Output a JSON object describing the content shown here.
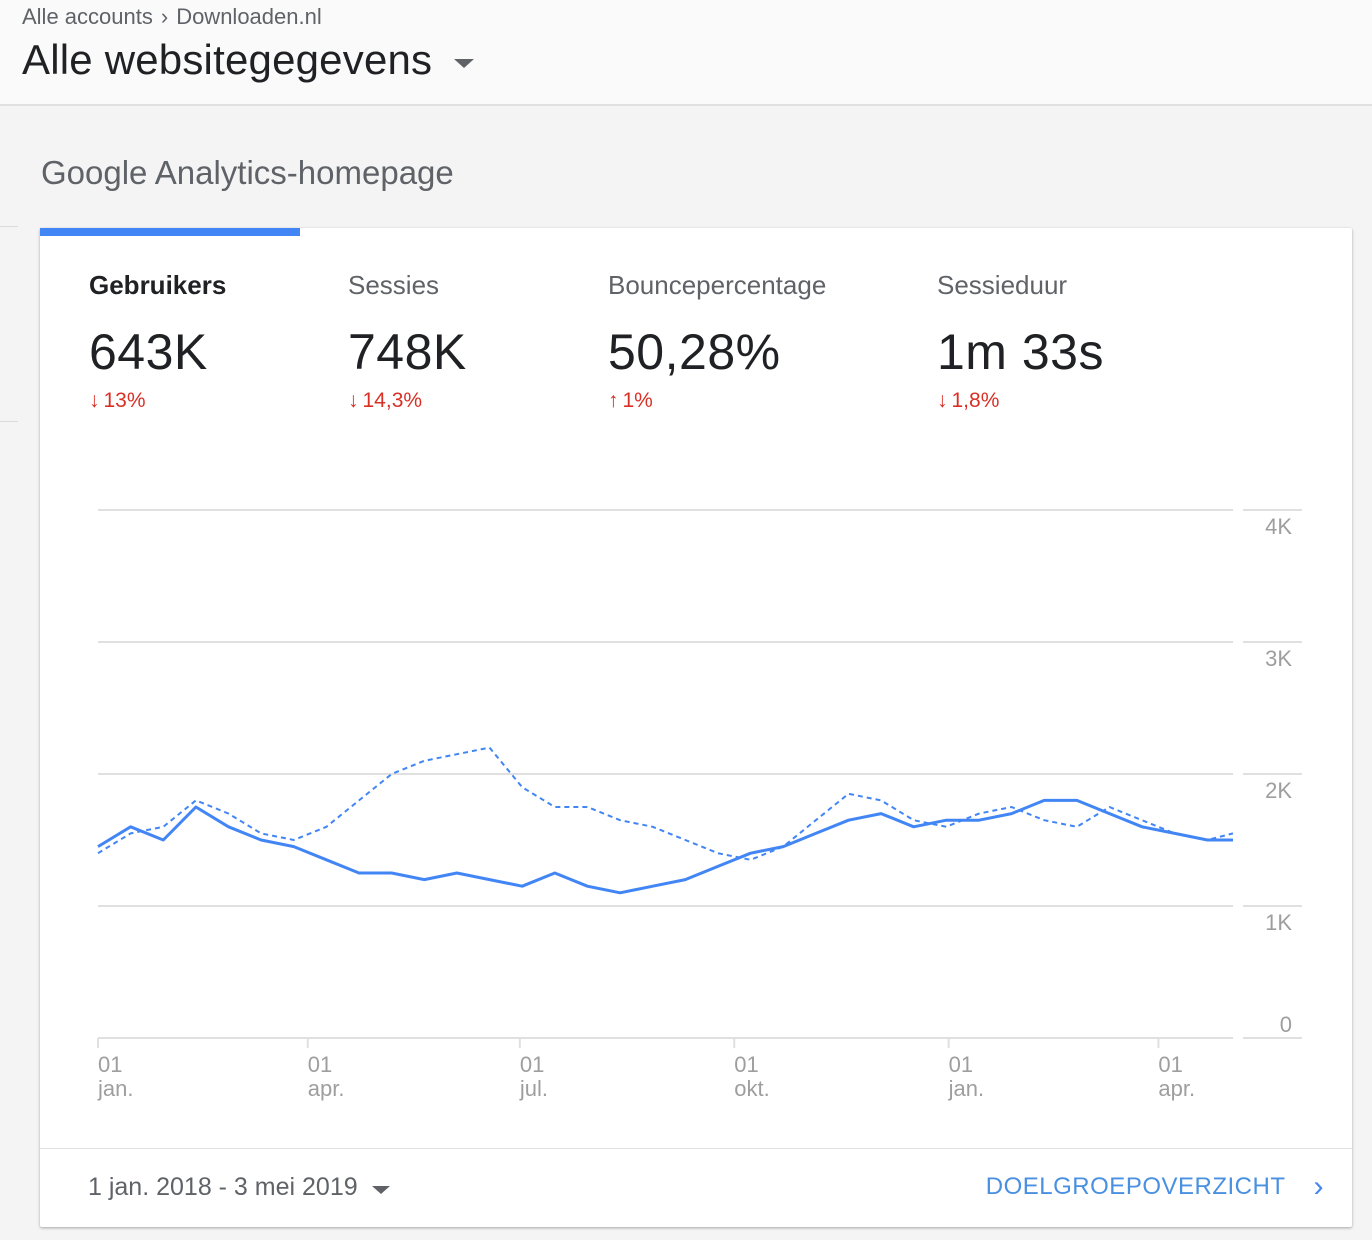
{
  "breadcrumb": {
    "account": "Alle accounts",
    "property": "Downloaden.nl",
    "separator_icon": "chevron-right-icon"
  },
  "view": {
    "title": "Alle websitegegevens",
    "caret_icon": "arrow-drop-down-icon"
  },
  "section_title": "Google Analytics-homepage",
  "colors": {
    "accent": "#4285f4",
    "negative": "#d93025",
    "link": "#4a90e2"
  },
  "metrics": [
    {
      "label": "Gebruikers",
      "value": "643K",
      "change": "13%",
      "direction": "down",
      "arrow_icon": "arrow-down-icon",
      "active": true
    },
    {
      "label": "Sessies",
      "value": "748K",
      "change": "14,3%",
      "direction": "down",
      "arrow_icon": "arrow-down-icon",
      "active": false
    },
    {
      "label": "Bouncepercentage",
      "value": "50,28%",
      "change": "1%",
      "direction": "up",
      "arrow_icon": "arrow-up-icon",
      "active": false
    },
    {
      "label": "Sessieduur",
      "value": "1m 33s",
      "change": "1,8%",
      "direction": "down",
      "arrow_icon": "arrow-down-icon",
      "active": false
    }
  ],
  "chart_data": {
    "type": "line",
    "title": "",
    "xlabel": "",
    "ylabel": "",
    "ylim": [
      0,
      4000
    ],
    "y_ticks": [
      "0",
      "1K",
      "2K",
      "3K",
      "4K"
    ],
    "x_ticks": [
      {
        "day": "01",
        "month": "jan.",
        "date": "2018-01-01"
      },
      {
        "day": "01",
        "month": "apr.",
        "date": "2018-04-01"
      },
      {
        "day": "01",
        "month": "jul.",
        "date": "2018-07-01"
      },
      {
        "day": "01",
        "month": "okt.",
        "date": "2018-10-01"
      },
      {
        "day": "01",
        "month": "jan.",
        "date": "2019-01-01"
      },
      {
        "day": "01",
        "month": "apr.",
        "date": "2019-04-01"
      }
    ],
    "x_range": [
      "2018-01-01",
      "2019-05-03"
    ],
    "grid": true,
    "series": [
      {
        "style": "solid",
        "x": [
          "2018-01-01",
          "2018-01-15",
          "2018-01-29",
          "2018-02-12",
          "2018-02-26",
          "2018-03-12",
          "2018-03-26",
          "2018-04-09",
          "2018-04-23",
          "2018-05-07",
          "2018-05-21",
          "2018-06-04",
          "2018-06-18",
          "2018-07-02",
          "2018-07-16",
          "2018-07-30",
          "2018-08-13",
          "2018-08-27",
          "2018-09-10",
          "2018-09-24",
          "2018-10-08",
          "2018-10-22",
          "2018-11-05",
          "2018-11-19",
          "2018-12-03",
          "2018-12-17",
          "2018-12-31",
          "2019-01-14",
          "2019-01-28",
          "2019-02-11",
          "2019-02-25",
          "2019-03-11",
          "2019-03-25",
          "2019-04-08",
          "2019-04-22",
          "2019-05-03"
        ],
        "values": [
          1450,
          1600,
          1500,
          1750,
          1600,
          1500,
          1450,
          1350,
          1250,
          1250,
          1200,
          1250,
          1200,
          1150,
          1250,
          1150,
          1100,
          1150,
          1200,
          1300,
          1400,
          1450,
          1550,
          1650,
          1700,
          1600,
          1650,
          1650,
          1700,
          1800,
          1800,
          1700,
          1600,
          1550,
          1500,
          1500
        ]
      },
      {
        "style": "dashed",
        "x": [
          "2018-01-01",
          "2018-01-15",
          "2018-01-29",
          "2018-02-12",
          "2018-02-26",
          "2018-03-12",
          "2018-03-26",
          "2018-04-09",
          "2018-04-23",
          "2018-05-07",
          "2018-05-21",
          "2018-06-04",
          "2018-06-18",
          "2018-07-02",
          "2018-07-16",
          "2018-07-30",
          "2018-08-13",
          "2018-08-27",
          "2018-09-10",
          "2018-09-24",
          "2018-10-08",
          "2018-10-22",
          "2018-11-05",
          "2018-11-19",
          "2018-12-03",
          "2018-12-17",
          "2018-12-31",
          "2019-01-14",
          "2019-01-28",
          "2019-02-11",
          "2019-02-25",
          "2019-03-11",
          "2019-03-25",
          "2019-04-08",
          "2019-04-22",
          "2019-05-03"
        ],
        "values": [
          1400,
          1550,
          1600,
          1800,
          1700,
          1550,
          1500,
          1600,
          1800,
          2000,
          2100,
          2150,
          2200,
          1900,
          1750,
          1750,
          1650,
          1600,
          1500,
          1400,
          1350,
          1450,
          1650,
          1850,
          1800,
          1650,
          1600,
          1700,
          1750,
          1650,
          1600,
          1750,
          1650,
          1550,
          1500,
          1550
        ]
      }
    ]
  },
  "footer": {
    "date_range": "1 jan. 2018 - 3 mei 2019",
    "date_caret_icon": "arrow-drop-down-icon",
    "link_label": "DOELGROEPOVERZICHT",
    "link_icon": "chevron-right-icon"
  }
}
